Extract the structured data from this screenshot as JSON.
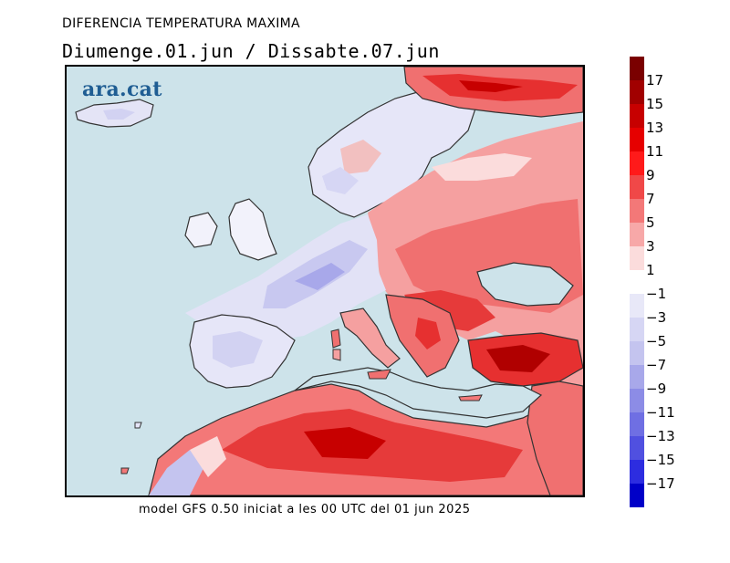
{
  "header": {
    "title": "DIFERENCIA TEMPERATURA MAXIMA",
    "period": "Diumenge.01.jun / Dissabte.07.jun"
  },
  "footer": {
    "model_note": "model GFS 0.50 iniciat a les 00 UTC del 01 jun 2025"
  },
  "logo": {
    "text": "ara.cat"
  },
  "legend": {
    "positive": [
      {
        "label": "17",
        "color": "#7a0000"
      },
      {
        "label": "15",
        "color": "#a10000"
      },
      {
        "label": "13",
        "color": "#c70000"
      },
      {
        "label": "11",
        "color": "#e60000"
      },
      {
        "label": "9",
        "color": "#ff1a1a"
      },
      {
        "label": "7",
        "color": "#f04848"
      },
      {
        "label": "5",
        "color": "#f37878"
      },
      {
        "label": "3",
        "color": "#f7a8a8"
      },
      {
        "label": "1",
        "color": "#fbdcdc"
      }
    ],
    "negative": [
      {
        "label": "−1",
        "color": "#e8e8f8"
      },
      {
        "label": "−3",
        "color": "#d6d6f4"
      },
      {
        "label": "−5",
        "color": "#c4c4ef"
      },
      {
        "label": "−7",
        "color": "#a8a8ea"
      },
      {
        "label": "−9",
        "color": "#8c8ce6"
      },
      {
        "label": "−11",
        "color": "#6f6fe3"
      },
      {
        "label": "−13",
        "color": "#5050e0"
      },
      {
        "label": "−15",
        "color": "#2d2de0"
      },
      {
        "label": "−17",
        "color": "#0000c8"
      }
    ]
  }
}
